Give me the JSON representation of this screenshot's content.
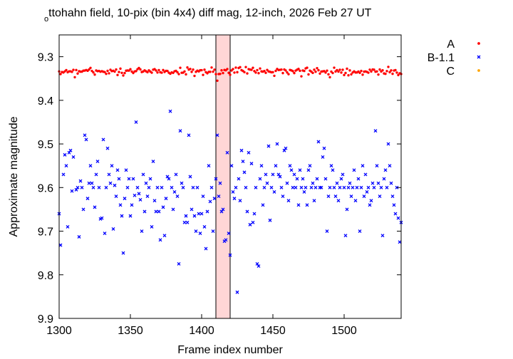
{
  "chart_data": {
    "type": "scatter",
    "title_prefix_subscript": "o",
    "title": "ttohahn field,  10-pix (bin 4x4) diff mag, 12-inch, 2026 Feb 27 UT",
    "xlabel": "Frame index number",
    "ylabel": "Approximate  magnitude",
    "xlim": [
      1300,
      1540
    ],
    "ylim": [
      9.9,
      9.25
    ],
    "y_inverted": true,
    "x_ticks": [
      1300,
      1350,
      1400,
      1450,
      1500
    ],
    "x_tick_labels": [
      "1300",
      "1350",
      "1400",
      "1450",
      "1500"
    ],
    "y_ticks": [
      9.3,
      9.4,
      9.5,
      9.6,
      9.7,
      9.8,
      9.9
    ],
    "y_tick_labels": [
      "9.3",
      "9.4",
      "9.5",
      "9.6",
      "9.7",
      "9.8",
      "9.9"
    ],
    "grid": false,
    "legend_position": "right-outside-top",
    "highlight_band": {
      "x_range": [
        1410,
        1420
      ],
      "color": "#ffd6d6"
    },
    "series": [
      {
        "name": "A",
        "color": "#ff0000",
        "marker": "dot",
        "x_range": [
          1300,
          1540
        ],
        "step": 1,
        "mean": 9.333,
        "scatter": 0.008,
        "points": [
          [
            1411,
            9.355
          ],
          [
            1311,
            9.347
          ],
          [
            1490,
            9.347
          ],
          [
            1470,
            9.345
          ],
          [
            1395,
            9.344
          ],
          [
            1345,
            9.343
          ],
          [
            1500,
            9.342
          ],
          [
            1325,
            9.341
          ]
        ]
      },
      {
        "name": "B-1.1",
        "color": "#0000ff",
        "marker": "x",
        "points": [
          [
            1300,
            9.66
          ],
          [
            1301,
            9.732
          ],
          [
            1303,
            9.57
          ],
          [
            1304,
            9.525
          ],
          [
            1305,
            9.55
          ],
          [
            1306,
            9.69
          ],
          [
            1307,
            9.52
          ],
          [
            1308,
            9.515
          ],
          [
            1310,
            9.53
          ],
          [
            1312,
            9.605
          ],
          [
            1313,
            9.6
          ],
          [
            1314,
            9.713
          ],
          [
            1315,
            9.585
          ],
          [
            1316,
            9.6
          ],
          [
            1317,
            9.65
          ],
          [
            1318,
            9.48
          ],
          [
            1319,
            9.49
          ],
          [
            1320,
            9.625
          ],
          [
            1322,
            9.55
          ],
          [
            1323,
            9.59
          ],
          [
            1324,
            9.6
          ],
          [
            1325,
            9.645
          ],
          [
            1326,
            9.57
          ],
          [
            1327,
            9.54
          ],
          [
            1329,
            9.672
          ],
          [
            1330,
            9.67
          ],
          [
            1331,
            9.49
          ],
          [
            1333,
            9.6
          ],
          [
            1334,
            9.51
          ],
          [
            1335,
            9.57
          ],
          [
            1336,
            9.59
          ],
          [
            1337,
            9.55
          ],
          [
            1338,
            9.695
          ],
          [
            1339,
            9.595
          ],
          [
            1340,
            9.62
          ],
          [
            1341,
            9.56
          ],
          [
            1342,
            9.58
          ],
          [
            1343,
            9.64
          ],
          [
            1344,
            9.665
          ],
          [
            1345,
            9.75
          ],
          [
            1346,
            9.625
          ],
          [
            1347,
            9.56
          ],
          [
            1348,
            9.6
          ],
          [
            1349,
            9.58
          ],
          [
            1350,
            9.665
          ],
          [
            1352,
            9.58
          ],
          [
            1353,
            9.618
          ],
          [
            1354,
            9.45
          ],
          [
            1355,
            9.6
          ],
          [
            1356,
            9.614
          ],
          [
            1357,
            9.628
          ],
          [
            1358,
            9.7
          ],
          [
            1359,
            9.57
          ],
          [
            1360,
            9.655
          ],
          [
            1362,
            9.62
          ],
          [
            1363,
            9.6
          ],
          [
            1364,
            9.58
          ],
          [
            1365,
            9.69
          ],
          [
            1366,
            9.54
          ],
          [
            1367,
            9.63
          ],
          [
            1368,
            9.655
          ],
          [
            1369,
            9.6
          ],
          [
            1370,
            9.655
          ],
          [
            1371,
            9.72
          ],
          [
            1372,
            9.6
          ],
          [
            1373,
            9.645
          ],
          [
            1374,
            9.71
          ],
          [
            1375,
            9.625
          ],
          [
            1376,
            9.575
          ],
          [
            1377,
            9.58
          ],
          [
            1378,
            9.425
          ],
          [
            1379,
            9.6
          ],
          [
            1380,
            9.65
          ],
          [
            1381,
            9.61
          ],
          [
            1382,
            9.57
          ],
          [
            1383,
            9.62
          ],
          [
            1384,
            9.775
          ],
          [
            1385,
            9.47
          ],
          [
            1386,
            9.59
          ],
          [
            1387,
            9.6
          ],
          [
            1388,
            9.68
          ],
          [
            1389,
            9.665
          ],
          [
            1390,
            9.68
          ],
          [
            1391,
            9.48
          ],
          [
            1392,
            9.575
          ],
          [
            1393,
            9.65
          ],
          [
            1394,
            9.6
          ],
          [
            1395,
            9.665
          ],
          [
            1396,
            9.7
          ],
          [
            1397,
            9.6
          ],
          [
            1398,
            9.66
          ],
          [
            1399,
            9.705
          ],
          [
            1400,
            9.66
          ],
          [
            1401,
            9.62
          ],
          [
            1402,
            9.69
          ],
          [
            1403,
            9.74
          ],
          [
            1404,
            9.655
          ],
          [
            1405,
            9.55
          ],
          [
            1406,
            9.632
          ],
          [
            1407,
            9.6
          ],
          [
            1408,
            9.7
          ],
          [
            1409,
            9.625
          ],
          [
            1410,
            9.58
          ],
          [
            1411,
            9.48
          ],
          [
            1412,
            9.62
          ],
          [
            1413,
            9.59
          ],
          [
            1414,
            9.655
          ],
          [
            1415,
            9.65
          ],
          [
            1416,
            9.723
          ],
          [
            1417,
            9.72
          ],
          [
            1418,
            9.52
          ],
          [
            1419,
            9.705
          ],
          [
            1420,
            9.755
          ],
          [
            1421,
            9.55
          ],
          [
            1422,
            9.61
          ],
          [
            1423,
            9.625
          ],
          [
            1424,
            9.6
          ],
          [
            1425,
            9.84
          ],
          [
            1426,
            9.58
          ],
          [
            1427,
            9.63
          ],
          [
            1428,
            9.515
          ],
          [
            1429,
            9.54
          ],
          [
            1430,
            9.565
          ],
          [
            1431,
            9.6
          ],
          [
            1432,
            9.655
          ],
          [
            1433,
            9.52
          ],
          [
            1434,
            9.685
          ],
          [
            1435,
            9.545
          ],
          [
            1436,
            9.68
          ],
          [
            1437,
            9.66
          ],
          [
            1438,
            9.6
          ],
          [
            1439,
            9.775
          ],
          [
            1440,
            9.78
          ],
          [
            1441,
            9.58
          ],
          [
            1442,
            9.55
          ],
          [
            1443,
            9.64
          ],
          [
            1444,
            9.6
          ],
          [
            1445,
            9.57
          ],
          [
            1446,
            9.59
          ],
          [
            1447,
            9.505
          ],
          [
            1448,
            9.675
          ],
          [
            1449,
            9.6
          ],
          [
            1450,
            9.57
          ],
          [
            1451,
            9.61
          ],
          [
            1452,
            9.55
          ],
          [
            1453,
            9.5
          ],
          [
            1454,
            9.57
          ],
          [
            1455,
            9.575
          ],
          [
            1456,
            9.6
          ],
          [
            1457,
            9.62
          ],
          [
            1458,
            9.515
          ],
          [
            1459,
            9.51
          ],
          [
            1460,
            9.59
          ],
          [
            1461,
            9.63
          ],
          [
            1462,
            9.55
          ],
          [
            1463,
            9.56
          ],
          [
            1464,
            9.6
          ],
          [
            1465,
            9.57
          ],
          [
            1466,
            9.6
          ],
          [
            1467,
            9.58
          ],
          [
            1468,
            9.64
          ],
          [
            1469,
            9.56
          ],
          [
            1470,
            9.6
          ],
          [
            1471,
            9.58
          ],
          [
            1472,
            9.61
          ],
          [
            1473,
            9.6
          ],
          [
            1474,
            9.64
          ],
          [
            1475,
            9.56
          ],
          [
            1476,
            9.55
          ],
          [
            1477,
            9.6
          ],
          [
            1478,
            9.59
          ],
          [
            1479,
            9.63
          ],
          [
            1480,
            9.6
          ],
          [
            1481,
            9.58
          ],
          [
            1482,
            9.495
          ],
          [
            1483,
            9.6
          ],
          [
            1484,
            9.6
          ],
          [
            1485,
            9.53
          ],
          [
            1486,
            9.51
          ],
          [
            1487,
            9.58
          ],
          [
            1488,
            9.7
          ],
          [
            1489,
            9.62
          ],
          [
            1490,
            9.6
          ],
          [
            1491,
            9.55
          ],
          [
            1492,
            9.56
          ],
          [
            1493,
            9.6
          ],
          [
            1494,
            9.62
          ],
          [
            1495,
            9.59
          ],
          [
            1496,
            9.63
          ],
          [
            1497,
            9.6
          ],
          [
            1498,
            9.58
          ],
          [
            1499,
            9.57
          ],
          [
            1500,
            9.6
          ],
          [
            1501,
            9.71
          ],
          [
            1502,
            9.65
          ],
          [
            1503,
            9.6
          ],
          [
            1504,
            9.59
          ],
          [
            1505,
            9.62
          ],
          [
            1506,
            9.6
          ],
          [
            1507,
            9.56
          ],
          [
            1508,
            9.63
          ],
          [
            1509,
            9.6
          ],
          [
            1510,
            9.58
          ],
          [
            1511,
            9.7
          ],
          [
            1512,
            9.6
          ],
          [
            1513,
            9.55
          ],
          [
            1514,
            9.62
          ],
          [
            1515,
            9.57
          ],
          [
            1516,
            9.61
          ],
          [
            1517,
            9.6
          ],
          [
            1518,
            9.64
          ],
          [
            1519,
            9.63
          ],
          [
            1520,
            9.59
          ],
          [
            1521,
            9.6
          ],
          [
            1522,
            9.47
          ],
          [
            1523,
            9.55
          ],
          [
            1524,
            9.59
          ],
          [
            1525,
            9.62
          ],
          [
            1526,
            9.6
          ],
          [
            1527,
            9.71
          ],
          [
            1528,
            9.58
          ],
          [
            1529,
            9.56
          ],
          [
            1530,
            9.6
          ],
          [
            1531,
            9.5
          ],
          [
            1532,
            9.55
          ],
          [
            1533,
            9.59
          ],
          [
            1534,
            9.62
          ],
          [
            1535,
            9.64
          ],
          [
            1536,
            9.66
          ],
          [
            1537,
            9.6
          ],
          [
            1538,
            9.67
          ],
          [
            1539,
            9.725
          ],
          [
            1540,
            9.68
          ],
          [
            1309,
            9.608
          ],
          [
            1321,
            9.59
          ],
          [
            1328,
            9.6
          ],
          [
            1332,
            9.705
          ],
          [
            1351,
            9.64
          ],
          [
            1361,
            9.59
          ]
        ]
      },
      {
        "name": "C",
        "color": "#ffa500",
        "marker": "dot",
        "points": []
      }
    ]
  }
}
